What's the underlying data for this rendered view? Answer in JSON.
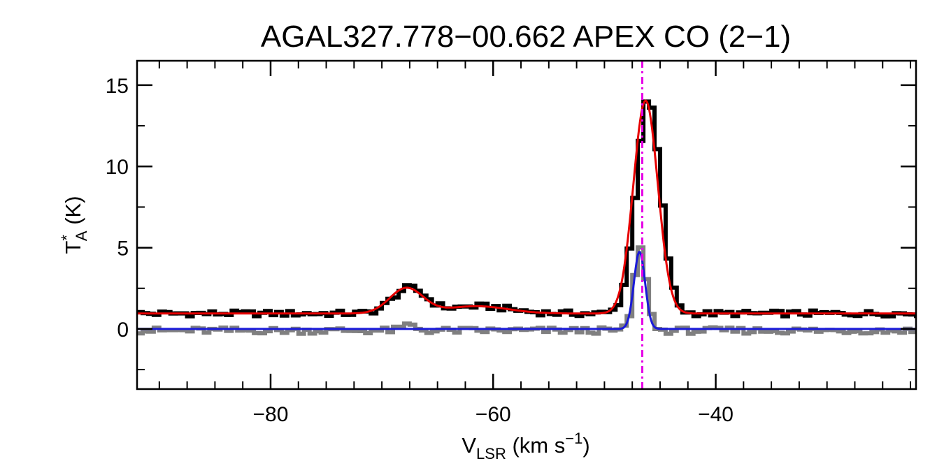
{
  "chart_data": {
    "type": "line",
    "title": "AGAL327.778−00.662  APEX CO (2−1)",
    "xlabel": {
      "main": "V",
      "sub": "LSR",
      "unit": " (km s",
      "sup": "−1",
      "close": ")"
    },
    "ylabel": {
      "main": "T",
      "sup": "*",
      "sub": "A",
      "unit": " (K)"
    },
    "xlim": [
      -92,
      -22
    ],
    "ylim": [
      -3.7,
      16.5
    ],
    "x_ticks": [
      -80,
      -60,
      -40
    ],
    "x_tick_labels": [
      "−80",
      "−60",
      "−40"
    ],
    "x_minor_step": 2.5,
    "y_ticks": [
      0,
      5,
      10,
      15
    ],
    "y_tick_labels": [
      "0",
      "5",
      "10",
      "15"
    ],
    "y_minor_step": 2.5,
    "vline": {
      "x": -46.6,
      "color": "#e600e6",
      "style": "dash-dot"
    },
    "series": [
      {
        "role": "observed spectrum",
        "style": "histogram",
        "color": "#000000",
        "baseline": 0.95,
        "noise": 0.18,
        "components": [
          {
            "amp": 1.55,
            "center": -67.8,
            "sigma": 1.5
          },
          {
            "amp": 0.45,
            "center": -61.5,
            "sigma": 2.8
          },
          {
            "amp": 13.1,
            "center": -46.3,
            "sigma": 1.1
          }
        ]
      },
      {
        "role": "secondary spectrum",
        "style": "histogram",
        "color": "#808080",
        "baseline": -0.1,
        "noise": 0.2,
        "components": [
          {
            "amp": 0.35,
            "center": -67.8,
            "sigma": 0.6
          },
          {
            "amp": 5.0,
            "center": -47.0,
            "sigma": 0.55
          }
        ]
      },
      {
        "role": "fit",
        "style": "line",
        "color": "#e60000",
        "baseline": 0.95,
        "components": [
          {
            "amp": 1.55,
            "center": -67.8,
            "sigma": 1.5
          },
          {
            "amp": 0.45,
            "center": -61.5,
            "sigma": 2.8
          },
          {
            "amp": 13.1,
            "center": -46.3,
            "sigma": 1.1
          }
        ]
      },
      {
        "role": "fit",
        "style": "line",
        "color": "#1a1ad9",
        "baseline": 0.0,
        "components": [
          {
            "amp": 4.75,
            "center": -46.85,
            "sigma": 0.5
          }
        ]
      }
    ]
  }
}
